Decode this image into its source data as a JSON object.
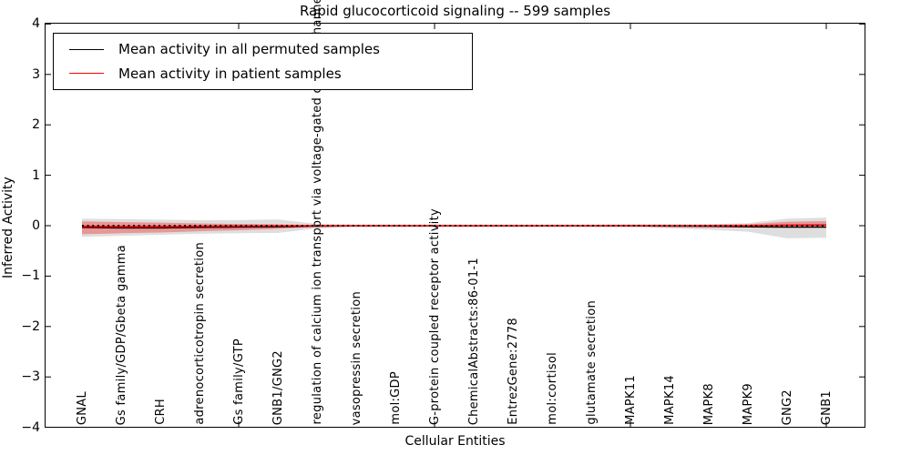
{
  "chart_data": {
    "type": "line",
    "title": "Rapid glucocorticoid signaling -- 599 samples",
    "xlabel": "Cellular Entities",
    "ylabel": "Inferred Activity",
    "ylim": [
      -4,
      4
    ],
    "yticks": [
      4,
      3,
      2,
      1,
      0,
      -1,
      -2,
      -3,
      -4
    ],
    "x_numeric_ticks": [
      0,
      5,
      10,
      15,
      20
    ],
    "grid": false,
    "legend_position": "upper left",
    "categories": [
      "GNAL",
      "Gs family/GDP/Gbeta gamma",
      "CRH",
      "adrenocorticotropin secretion",
      "Gs family/GTP",
      "GNB1/GNG2",
      "regulation of calcium ion transport via voltage-gated calcium channel",
      "vasopressin secretion",
      "mol:GDP",
      "G-protein coupled receptor activity",
      "ChemicalAbstracts:86-01-1",
      "EntrezGene:2778",
      "mol:cortisol",
      "glutamate secretion",
      "MAPK11",
      "MAPK14",
      "MAPK8",
      "MAPK9",
      "GNG2",
      "GNB1"
    ],
    "series": [
      {
        "name": "Mean activity in all permuted samples",
        "color": "#000000",
        "values": [
          -0.036,
          -0.045,
          -0.045,
          -0.036,
          -0.03,
          -0.025,
          -0.01,
          -0.005,
          -0.005,
          -0.005,
          -0.005,
          -0.005,
          -0.005,
          -0.005,
          -0.005,
          -0.01,
          -0.015,
          -0.025,
          -0.03,
          -0.03
        ]
      },
      {
        "name": "Mean activity in patient samples",
        "color": "#ff0000",
        "values": [
          -0.013,
          -0.018,
          -0.018,
          -0.012,
          -0.008,
          -0.006,
          -0.004,
          -0.003,
          -0.003,
          -0.003,
          -0.003,
          -0.003,
          -0.003,
          -0.003,
          -0.003,
          -0.003,
          -0.004,
          -0.005,
          0.01,
          0.012
        ]
      }
    ],
    "bands": [
      {
        "name": "permuted-std-band",
        "color": "rgba(0,0,0,0.13)",
        "upper": [
          0.14,
          0.13,
          0.12,
          0.11,
          0.11,
          0.125,
          0.036,
          0.025,
          0.025,
          0.025,
          0.025,
          0.025,
          0.025,
          0.025,
          0.03,
          0.03,
          0.03,
          0.05,
          0.14,
          0.16
        ],
        "lower": [
          -0.22,
          -0.2,
          -0.18,
          -0.16,
          -0.15,
          -0.145,
          -0.054,
          -0.025,
          -0.025,
          -0.025,
          -0.025,
          -0.025,
          -0.025,
          -0.025,
          -0.03,
          -0.05,
          -0.08,
          -0.12,
          -0.25,
          -0.24
        ]
      },
      {
        "name": "patient-std-band",
        "color": "rgba(255,0,0,0.32)",
        "upper": [
          0.085,
          0.07,
          0.06,
          0.045,
          0.035,
          0.027,
          0.013,
          0.012,
          0.012,
          0.012,
          0.012,
          0.012,
          0.012,
          0.012,
          0.015,
          0.015,
          0.02,
          0.03,
          0.08,
          0.09
        ],
        "lower": [
          -0.17,
          -0.15,
          -0.135,
          -0.11,
          -0.09,
          -0.063,
          -0.023,
          -0.012,
          -0.012,
          -0.012,
          -0.012,
          -0.012,
          -0.012,
          -0.012,
          -0.015,
          -0.015,
          -0.02,
          -0.03,
          -0.04,
          -0.04
        ]
      }
    ],
    "zero_line": {
      "value": 0,
      "style": "dotted",
      "color": "#000000"
    }
  }
}
